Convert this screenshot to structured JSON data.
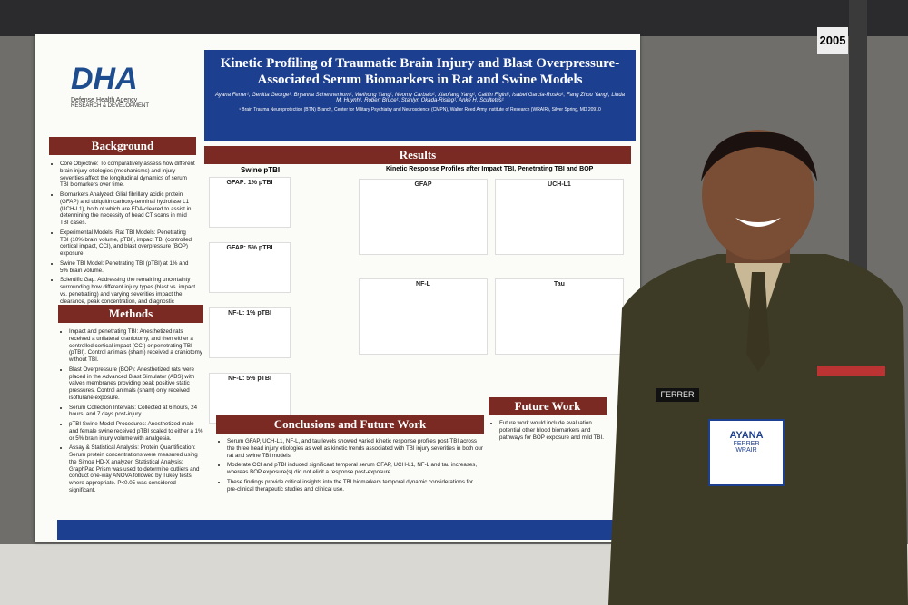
{
  "booth": "2005",
  "poster": {
    "logo": {
      "mark": "DHA",
      "agency": "Defense Health Agency",
      "unit": "RESEARCH & DEVELOPMENT"
    },
    "title": "Kinetic Profiling of Traumatic Brain Injury and Blast Overpressure-Associated Serum Biomarkers in Rat and Swine Models",
    "authors": "Ayana Ferrer¹, Genitta George¹, Bryanna Schermerhorn¹, Weihong Yang¹, Neomy Carbalo¹, Xiaofang Yang¹, Caitlin Figini¹, Isabel Garcia-Rosko¹, Fang Zhou Yang¹, Linda M. Huynh¹, Robert Bruce¹, Stanlyn Okada-Rising¹, Anke H. Scultetus¹",
    "affiliation": "¹ Brain Trauma Neuroprotection (BTN) Branch, Center for Military Psychiatry and Neuroscience (CMPN), Walter Reed Army Institute of Research (WRAIR), Silver Spring, MD 20910",
    "background": {
      "heading": "Background",
      "items": [
        "Core Objective: To comparatively assess how different brain injury etiologies (mechanisms) and injury severities affect the longitudinal dynamics of serum TBI biomarkers over time.",
        "Biomarkers Analyzed: Glial fibrillary acidic protein (GFAP) and ubiquitin carboxy-terminal hydrolase L1 (UCH-L1), both of which are FDA-cleared to assist in determining the necessity of head CT scans in mild TBI cases.",
        "Experimental Models: Rat TBI Models: Penetrating TBI (10% brain volume, pTBI), impact TBI (controlled cortical impact, CCI), and blast overpressure (BOP) exposure.",
        "Swine TBI Model: Penetrating TBI (pTBI) at 1% and 5% brain volume.",
        "Scientific Gap: Addressing the remaining uncertainty surrounding how different injury types (blast vs. impact vs. penetrating) and varying severities impact the clearance, peak concentration, and diagnostic windows of serum GFAP, UCH-L1, NF-L and tau in systemic circulation."
      ]
    },
    "methods": {
      "heading": "Methods",
      "items": [
        "Impact and penetrating TBI: Anesthetized rats received a unilateral craniotomy, and then either a controlled cortical impact (CCI) or penetrating TBI (pTBI). Control animals (sham) received a craniotomy without TBI.",
        "Blast Overpressure (BOP): Anesthetized rats were placed in the Advanced Blast Simulator (ABS) with valves membranes providing peak positive static pressures. Control animals (sham) only received isoflurane exposure.",
        "Serum Collection Intervals: Collected at 6 hours, 24 hours, and 7 days post-injury.",
        "pTBI Swine Model Procedures: Anesthetized male and female swine received pTBI scaled to either a 1% or 5% brain injury volume with analgesia.",
        "Assay & Statistical Analysis: Protein Quantification: Serum protein concentrations were measured using the Simoa HD-X analyzer. Statistical Analysis: GraphPad Prism was used to determine outliers and conduct one-way ANOVA followed by Tukey tests where appropriate. P<0.05 was considered significant."
      ]
    },
    "results": {
      "heading": "Results",
      "swine": "Swine pTBI",
      "profiles": "Kinetic Response Profiles after Impact TBI, Penetrating TBI and BOP",
      "panels": [
        "GFAP: 1% pTBI",
        "GFAP: 5% pTBI",
        "NF-L: 1% pTBI",
        "NF-L: 5% pTBI"
      ],
      "rat_panels": [
        "GFAP",
        "UCH-L1",
        "NF-L",
        "Tau"
      ]
    },
    "conclusions": {
      "heading": "Conclusions and Future Work",
      "items": [
        "Serum GFAP, UCH-L1, NF-L, and tau levels showed varied kinetic response profiles post-TBI across the three head injury etiologies as well as kinetic trends associated with TBI injury severities in both our rat and swine TBI models.",
        "Moderate CCI and pTBI induced significant temporal serum GFAP, UCH-L1, NF-L and tau increases, whereas BOP exposure(s) did not elicit a response post-exposure.",
        "These findings provide critical insights into the TBI biomarkers temporal dynamic considerations for pre-clinical therapeutic studies and clinical use."
      ]
    },
    "future": {
      "heading": "Future Work",
      "items": [
        "Future work would include evaluation potential other blood biomarkers and pathways for BOP exposure and mild TBI."
      ]
    }
  },
  "person": {
    "nametag": "FERRER",
    "badge": {
      "first": "AYANA",
      "last": "FERRER",
      "org": "WRAIR"
    }
  }
}
